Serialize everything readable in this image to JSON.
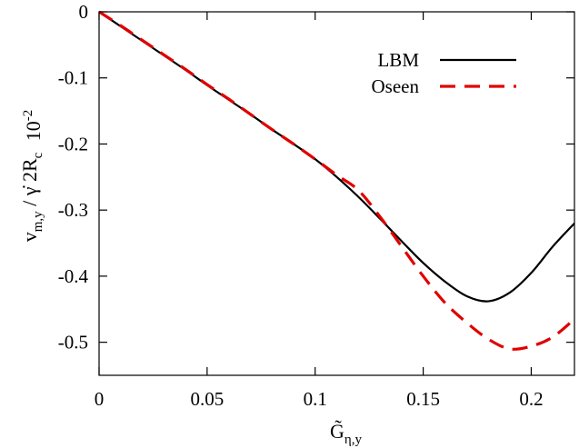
{
  "chart_data": {
    "type": "line",
    "title": "",
    "xlabel": "G̃",
    "xlabel_sub": "η,y",
    "ylabel": "v",
    "ylabel_sub": "m,y",
    "ylabel_rest": " / γ̇ 2R",
    "ylabel_rest_sub": "c",
    "yscale_note": "10",
    "yscale_note_exp": "-2",
    "xlim": [
      0,
      0.22
    ],
    "ylim": [
      -0.55,
      0
    ],
    "xticks": [
      0,
      0.05,
      0.1,
      0.15,
      0.2
    ],
    "xtick_labels": [
      "0",
      "0.05",
      "0.1",
      "0.15",
      "0.2"
    ],
    "yticks": [
      0,
      -0.1,
      -0.2,
      -0.3,
      -0.4,
      -0.5
    ],
    "ytick_labels": [
      "0",
      "-0.1",
      "-0.2",
      "-0.3",
      "-0.4",
      "-0.5"
    ],
    "grid": false,
    "legend_position": "top-right",
    "series": [
      {
        "name": "LBM",
        "color": "#000000",
        "dash": "solid",
        "x": [
          0,
          0.01,
          0.02,
          0.03,
          0.04,
          0.05,
          0.06,
          0.07,
          0.08,
          0.09,
          0.1,
          0.11,
          0.12,
          0.13,
          0.14,
          0.15,
          0.16,
          0.17,
          0.18,
          0.19,
          0.2,
          0.21,
          0.22
        ],
        "values": [
          0,
          -0.022,
          -0.044,
          -0.066,
          -0.088,
          -0.111,
          -0.133,
          -0.155,
          -0.178,
          -0.2,
          -0.223,
          -0.25,
          -0.28,
          -0.313,
          -0.347,
          -0.38,
          -0.408,
          -0.43,
          -0.438,
          -0.425,
          -0.395,
          -0.355,
          -0.32
        ]
      },
      {
        "name": "Oseen",
        "color": "#e00000",
        "dash": "dashed",
        "x": [
          0,
          0.01,
          0.02,
          0.03,
          0.04,
          0.05,
          0.06,
          0.07,
          0.08,
          0.09,
          0.1,
          0.11,
          0.12,
          0.13,
          0.14,
          0.15,
          0.16,
          0.17,
          0.18,
          0.19,
          0.2,
          0.21,
          0.22
        ],
        "values": [
          0,
          -0.021,
          -0.043,
          -0.065,
          -0.087,
          -0.11,
          -0.132,
          -0.155,
          -0.178,
          -0.2,
          -0.223,
          -0.247,
          -0.27,
          -0.31,
          -0.355,
          -0.4,
          -0.44,
          -0.47,
          -0.495,
          -0.51,
          -0.506,
          -0.492,
          -0.465
        ]
      }
    ]
  }
}
